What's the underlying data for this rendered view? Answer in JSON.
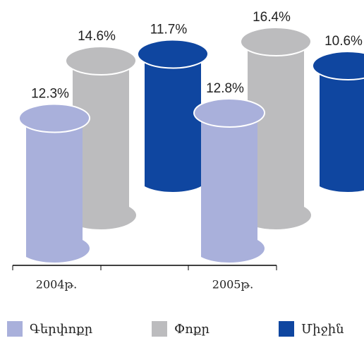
{
  "chart_data": {
    "type": "bar3d",
    "categories": [
      "2004թ.",
      "2005թ."
    ],
    "series": [
      {
        "name": "Գերփոքր",
        "color": "#a9b0db",
        "values": [
          12.3,
          12.8
        ],
        "value_labels": [
          "12.3%",
          "12.8%"
        ]
      },
      {
        "name": "Փոքր",
        "color": "#bcbcbe",
        "values": [
          14.6,
          16.4
        ],
        "value_labels": [
          "14.6%",
          "16.4%"
        ]
      },
      {
        "name": "Միջին",
        "color": "#0f46a0",
        "values": [
          11.7,
          10.6
        ],
        "value_labels": [
          "11.7%",
          "10.6%"
        ]
      }
    ],
    "legend": "bottom"
  }
}
